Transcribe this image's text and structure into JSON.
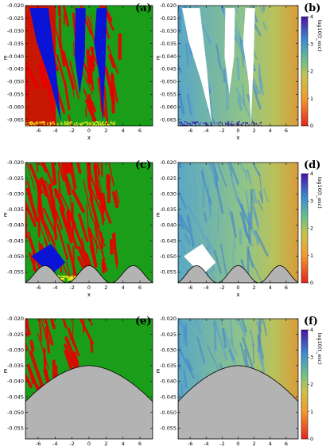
{
  "chart_data": [
    {
      "id": "a",
      "type": "heatmap",
      "panel_label": "(a)",
      "xlabel": "x",
      "ylabel": "E",
      "xlim": [
        -7.5,
        7.5
      ],
      "ylim": [
        -0.0675,
        -0.02
      ],
      "xticks": [
        "-6",
        "-4",
        "-2",
        "0",
        "2",
        "4",
        "6"
      ],
      "xtick_values": [
        -6,
        -4,
        -2,
        0,
        2,
        4,
        6
      ],
      "yticks": [
        "-0.020",
        "-0.025",
        "-0.030",
        "-0.035",
        "-0.040",
        "-0.045",
        "-0.050",
        "-0.055",
        "-0.060",
        "-0.065"
      ],
      "ytick_values": [
        -0.02,
        -0.025,
        -0.03,
        -0.035,
        -0.04,
        -0.045,
        -0.05,
        -0.055,
        -0.06,
        -0.065
      ],
      "categories": [
        "green",
        "red",
        "blue",
        "yellow"
      ],
      "colors": {
        "green": "#1a9e1a",
        "red": "#e60000",
        "blue": "#0a14d6",
        "yellow": "#ecea1c",
        "gray": "#b3b3b3"
      },
      "potential": {
        "kind": "none"
      }
    },
    {
      "id": "b",
      "type": "heatmap",
      "panel_label": "(b)",
      "xlabel": "x",
      "ylabel": "E",
      "colorbar_label": "log10(t_esc)",
      "colorbar_range": [
        0,
        4
      ],
      "colorbar_ticks": [
        "0",
        "1",
        "2",
        "3",
        "4"
      ],
      "xlim": [
        -7.5,
        7.5
      ],
      "ylim": [
        -0.0675,
        -0.02
      ],
      "xticks": [
        "-6",
        "-4",
        "-2",
        "0",
        "2",
        "4",
        "6"
      ],
      "xtick_values": [
        -6,
        -4,
        -2,
        0,
        2,
        4,
        6
      ],
      "yticks": [
        "-0.020",
        "-0.025",
        "-0.030",
        "-0.035",
        "-0.040",
        "-0.045",
        "-0.050",
        "-0.055",
        "-0.060",
        "-0.065"
      ],
      "ytick_values": [
        -0.02,
        -0.025,
        -0.03,
        -0.035,
        -0.04,
        -0.045,
        -0.05,
        -0.055,
        -0.06,
        -0.065
      ],
      "potential": {
        "kind": "none"
      }
    },
    {
      "id": "c",
      "type": "heatmap",
      "panel_label": "(c)",
      "xlabel": "x",
      "ylabel": "E",
      "xlim": [
        -7.5,
        7.5
      ],
      "ylim": [
        -0.0585,
        -0.02
      ],
      "xticks": [
        "-6",
        "-4",
        "-2",
        "0",
        "2",
        "4",
        "6"
      ],
      "xtick_values": [
        -6,
        -4,
        -2,
        0,
        2,
        4,
        6
      ],
      "yticks": [
        "-0.020",
        "-0.025",
        "-0.030",
        "-0.035",
        "-0.040",
        "-0.045",
        "-0.050",
        "-0.055"
      ],
      "ytick_values": [
        -0.02,
        -0.025,
        -0.03,
        -0.035,
        -0.04,
        -0.045,
        -0.05,
        -0.055
      ],
      "potential": {
        "kind": "periodic",
        "min": -0.0585,
        "max": -0.053,
        "period": 5.2,
        "phase": -2.6
      }
    },
    {
      "id": "d",
      "type": "heatmap",
      "panel_label": "(d)",
      "xlabel": "x",
      "ylabel": "E",
      "colorbar_label": "log10(t_esc)",
      "colorbar_range": [
        0,
        4
      ],
      "colorbar_ticks": [
        "0",
        "1",
        "2",
        "3",
        "4"
      ],
      "xlim": [
        -7.5,
        7.5
      ],
      "ylim": [
        -0.0585,
        -0.02
      ],
      "xticks": [
        "-6",
        "-4",
        "-2",
        "0",
        "2",
        "4",
        "6"
      ],
      "xtick_values": [
        -6,
        -4,
        -2,
        0,
        2,
        4,
        6
      ],
      "yticks": [
        "-0.020",
        "-0.025",
        "-0.030",
        "-0.035",
        "-0.040",
        "-0.045",
        "-0.050",
        "-0.055"
      ],
      "ytick_values": [
        -0.02,
        -0.025,
        -0.03,
        -0.035,
        -0.04,
        -0.045,
        -0.05,
        -0.055
      ],
      "potential": {
        "kind": "periodic",
        "min": -0.0585,
        "max": -0.053,
        "period": 5.2,
        "phase": -2.6
      }
    },
    {
      "id": "e",
      "type": "heatmap",
      "panel_label": "(e)",
      "xlabel": "x",
      "ylabel": "E",
      "xlim": [
        -7.5,
        7.5
      ],
      "ylim": [
        -0.0585,
        -0.02
      ],
      "xticks": [
        "-6",
        "-4",
        "-2",
        "0",
        "2",
        "4",
        "6"
      ],
      "xtick_values": [
        -6,
        -4,
        -2,
        0,
        2,
        4,
        6
      ],
      "yticks": [
        "-0.020",
        "-0.025",
        "-0.030",
        "-0.035",
        "-0.040",
        "-0.045",
        "-0.050",
        "-0.055"
      ],
      "ytick_values": [
        -0.02,
        -0.025,
        -0.03,
        -0.035,
        -0.04,
        -0.045,
        -0.05,
        -0.055
      ],
      "potential": {
        "kind": "dome",
        "peak_x": 0,
        "peak_E": -0.035,
        "edge_E": -0.0465
      }
    },
    {
      "id": "f",
      "type": "heatmap",
      "panel_label": "(f)",
      "xlabel": "x",
      "ylabel": "E",
      "colorbar_label": "log10(t_esc)",
      "colorbar_range": [
        0,
        4
      ],
      "colorbar_ticks": [
        "0",
        "1",
        "2",
        "3",
        "4"
      ],
      "xlim": [
        -7.5,
        7.5
      ],
      "ylim": [
        -0.0585,
        -0.02
      ],
      "xticks": [
        "-6",
        "-4",
        "-2",
        "0",
        "2",
        "4",
        "6"
      ],
      "xtick_values": [
        -6,
        -4,
        -2,
        0,
        2,
        4,
        6
      ],
      "yticks": [
        "-0.020",
        "-0.025",
        "-0.030",
        "-0.035",
        "-0.040",
        "-0.045",
        "-0.050",
        "-0.055"
      ],
      "ytick_values": [
        -0.02,
        -0.025,
        -0.03,
        -0.035,
        -0.04,
        -0.045,
        -0.05,
        -0.055
      ],
      "potential": {
        "kind": "dome",
        "peak_x": 0,
        "peak_E": -0.035,
        "edge_E": -0.0465
      }
    }
  ]
}
